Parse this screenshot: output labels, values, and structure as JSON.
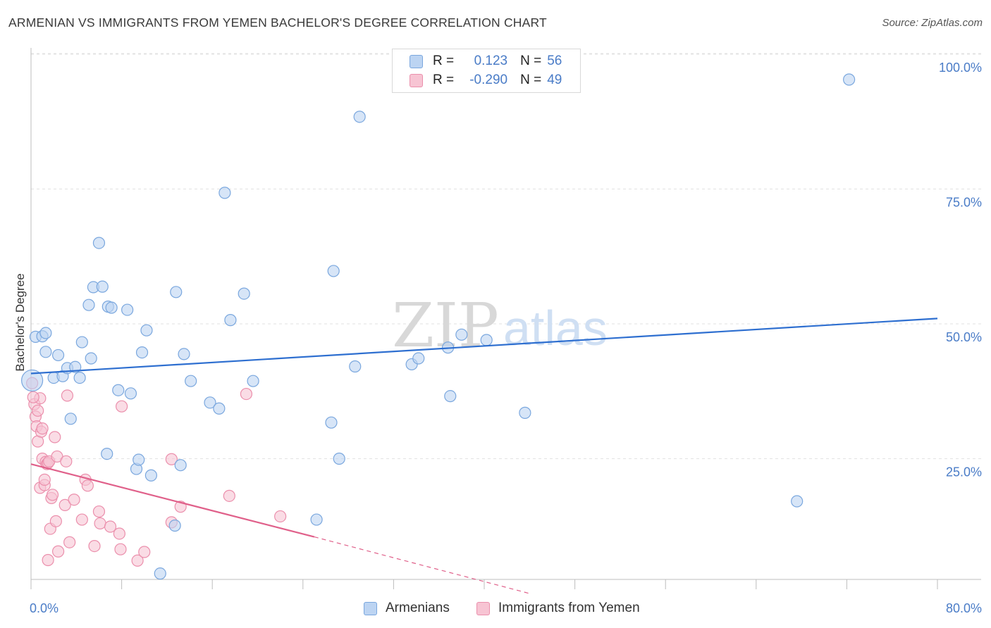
{
  "title": "ARMENIAN VS IMMIGRANTS FROM YEMEN BACHELOR'S DEGREE CORRELATION CHART",
  "source": "Source: ZipAtlas.com",
  "watermark": {
    "zip": "ZIP",
    "atlas": "atlas"
  },
  "colors": {
    "blue_fill": "#bcd4f2",
    "blue_stroke": "#7aa7de",
    "blue_line": "#2e6fd0",
    "pink_fill": "#f7c4d3",
    "pink_stroke": "#eb8fac",
    "pink_line": "#e0608a",
    "axis_text": "#4a7cc7"
  },
  "legend": {
    "r_label": "R =",
    "n_label": "N =",
    "rows": [
      {
        "series": "armenians",
        "r": "0.123",
        "n": "56"
      },
      {
        "series": "yemen",
        "r": "-0.290",
        "n": "49"
      }
    ],
    "bottom": [
      {
        "series": "armenians",
        "label": "Armenians"
      },
      {
        "series": "yemen",
        "label": "Immigrants from Yemen"
      }
    ]
  },
  "chart_data": {
    "type": "scatter",
    "title": "ARMENIAN VS IMMIGRANTS FROM YEMEN BACHELOR'S DEGREE CORRELATION CHART",
    "xlabel": "",
    "ylabel": "Bachelor's Degree",
    "xlim": [
      0,
      80
    ],
    "ylim": [
      0,
      100
    ],
    "x_tick_labels": [
      {
        "value": 0,
        "label": "0.0%"
      },
      {
        "value": 80,
        "label": "80.0%"
      }
    ],
    "x_minor_ticks": [
      0,
      8,
      16,
      24,
      32,
      40,
      48,
      56,
      64,
      72,
      80
    ],
    "y_tick_labels": [
      {
        "value": 25,
        "label": "25.0%"
      },
      {
        "value": 50,
        "label": "50.0%"
      },
      {
        "value": 75,
        "label": "75.0%"
      },
      {
        "value": 100,
        "label": "100.0%"
      }
    ],
    "grid": true,
    "series": [
      {
        "name": "Armenians",
        "key": "armenians",
        "r": 0.123,
        "n": 56,
        "trend": {
          "x0": 0,
          "y0": 40.8,
          "x1": 80,
          "y1": 51.0
        },
        "points": [
          [
            0.1,
            39.5
          ],
          [
            0.4,
            47.6
          ],
          [
            1.0,
            47.7
          ],
          [
            1.3,
            48.3
          ],
          [
            1.3,
            44.8
          ],
          [
            2.0,
            40.0
          ],
          [
            2.4,
            44.2
          ],
          [
            2.8,
            40.3
          ],
          [
            3.2,
            41.8
          ],
          [
            3.5,
            32.4
          ],
          [
            3.9,
            42.0
          ],
          [
            4.3,
            40.0
          ],
          [
            4.5,
            46.6
          ],
          [
            5.1,
            53.5
          ],
          [
            5.3,
            43.6
          ],
          [
            5.5,
            56.8
          ],
          [
            6.0,
            65.0
          ],
          [
            6.3,
            56.9
          ],
          [
            6.8,
            53.2
          ],
          [
            6.7,
            25.9
          ],
          [
            7.1,
            53.0
          ],
          [
            7.7,
            37.7
          ],
          [
            8.5,
            52.6
          ],
          [
            8.8,
            37.1
          ],
          [
            9.3,
            23.1
          ],
          [
            9.5,
            24.8
          ],
          [
            9.8,
            44.7
          ],
          [
            10.2,
            48.8
          ],
          [
            10.6,
            21.9
          ],
          [
            11.4,
            3.7
          ],
          [
            12.7,
            12.6
          ],
          [
            12.8,
            55.9
          ],
          [
            13.2,
            23.8
          ],
          [
            13.5,
            44.4
          ],
          [
            14.1,
            39.4
          ],
          [
            15.8,
            35.4
          ],
          [
            16.6,
            34.3
          ],
          [
            17.1,
            74.3
          ],
          [
            17.6,
            50.7
          ],
          [
            18.8,
            55.6
          ],
          [
            19.6,
            39.4
          ],
          [
            25.2,
            13.7
          ],
          [
            26.5,
            31.7
          ],
          [
            26.7,
            59.8
          ],
          [
            27.2,
            25.0
          ],
          [
            28.6,
            42.1
          ],
          [
            29.0,
            88.4
          ],
          [
            33.6,
            42.5
          ],
          [
            34.2,
            43.6
          ],
          [
            36.8,
            45.6
          ],
          [
            37.0,
            36.6
          ],
          [
            38.0,
            48.0
          ],
          [
            40.2,
            47.0
          ],
          [
            43.6,
            33.5
          ],
          [
            67.6,
            17.1
          ],
          [
            72.2,
            95.3
          ]
        ]
      },
      {
        "name": "Immigrants from Yemen",
        "key": "yemen",
        "r": -0.29,
        "n": 49,
        "trend": {
          "x0": 0,
          "y0": 24.0,
          "x1": 25.0,
          "y1": 10.5
        },
        "trend_extension": {
          "x0": 25.0,
          "y0": 10.5,
          "x1": 44.0,
          "y1": 0
        },
        "points": [
          [
            0.1,
            39.0
          ],
          [
            0.3,
            35.1
          ],
          [
            0.4,
            32.8
          ],
          [
            0.5,
            31.0
          ],
          [
            0.6,
            28.2
          ],
          [
            0.6,
            33.9
          ],
          [
            0.8,
            36.2
          ],
          [
            0.8,
            19.6
          ],
          [
            0.9,
            30.0
          ],
          [
            1.0,
            30.6
          ],
          [
            1.0,
            25.0
          ],
          [
            1.2,
            20.1
          ],
          [
            1.2,
            21.1
          ],
          [
            1.3,
            24.4
          ],
          [
            1.4,
            24.0
          ],
          [
            1.5,
            24.2
          ],
          [
            1.5,
            6.2
          ],
          [
            1.6,
            24.5
          ],
          [
            1.7,
            12.0
          ],
          [
            1.8,
            17.7
          ],
          [
            1.9,
            18.3
          ],
          [
            2.1,
            29.0
          ],
          [
            2.2,
            13.4
          ],
          [
            2.3,
            25.4
          ],
          [
            2.4,
            7.8
          ],
          [
            3.0,
            16.4
          ],
          [
            3.1,
            24.5
          ],
          [
            3.2,
            36.7
          ],
          [
            3.4,
            9.5
          ],
          [
            3.8,
            17.4
          ],
          [
            4.5,
            13.7
          ],
          [
            4.8,
            21.1
          ],
          [
            5.0,
            20.0
          ],
          [
            5.6,
            8.8
          ],
          [
            6.0,
            15.2
          ],
          [
            6.1,
            13.0
          ],
          [
            7.0,
            12.4
          ],
          [
            7.8,
            11.1
          ],
          [
            7.9,
            8.2
          ],
          [
            8.0,
            34.7
          ],
          [
            9.4,
            6.1
          ],
          [
            10.0,
            7.7
          ],
          [
            12.4,
            13.2
          ],
          [
            12.4,
            24.9
          ],
          [
            13.2,
            16.1
          ],
          [
            17.5,
            18.1
          ],
          [
            19.0,
            37.0
          ],
          [
            22.0,
            14.3
          ],
          [
            0.2,
            36.4
          ]
        ]
      }
    ]
  }
}
